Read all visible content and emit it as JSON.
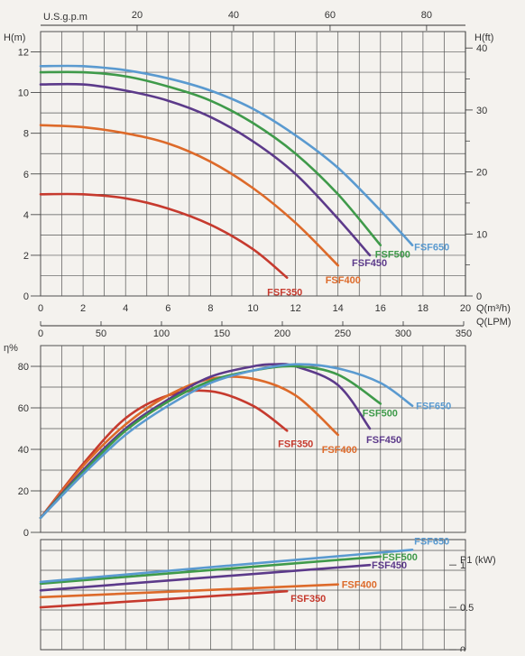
{
  "chart_data": [
    {
      "type": "line",
      "title": "",
      "xlabel": "Q(m³/h)",
      "ylabel": "H(m)",
      "y2label": "H(ft)",
      "top_axis_label": "U.S.g.p.m",
      "bottom_axis2_label": "Q(LPM)",
      "xlim": [
        0,
        20
      ],
      "ylim": [
        0,
        13
      ],
      "x_ticks": [
        "0",
        "2",
        "4",
        "6",
        "8",
        "10",
        "12",
        "14",
        "16",
        "18",
        "20"
      ],
      "y_ticks": [
        "0",
        "2",
        "4",
        "6",
        "8",
        "10",
        "12"
      ],
      "gpm_ticks": [
        "20",
        "40",
        "60",
        "80"
      ],
      "ft_ticks": [
        "0",
        "10",
        "20",
        "30",
        "40"
      ],
      "lpm_ticks": [
        "0",
        "50",
        "100",
        "150",
        "200",
        "250",
        "300",
        "350"
      ],
      "series": [
        {
          "name": "FSF350",
          "color": "#c63a2e",
          "x": [
            0,
            2,
            4,
            6,
            8,
            10,
            11.6
          ],
          "y": [
            5.0,
            5.0,
            4.8,
            4.3,
            3.5,
            2.3,
            0.9
          ]
        },
        {
          "name": "FSF400",
          "color": "#dd6a2a",
          "x": [
            0,
            2,
            4,
            6,
            8,
            10,
            12,
            14
          ],
          "y": [
            8.4,
            8.3,
            8.0,
            7.5,
            6.6,
            5.3,
            3.6,
            1.5
          ]
        },
        {
          "name": "FSF450",
          "color": "#5c3a8a",
          "x": [
            0,
            2,
            4,
            6,
            8,
            10,
            12,
            14,
            15.5
          ],
          "y": [
            10.4,
            10.4,
            10.1,
            9.6,
            8.8,
            7.6,
            6.0,
            3.8,
            2.0
          ]
        },
        {
          "name": "FSF500",
          "color": "#3f9a4a",
          "x": [
            0,
            2,
            4,
            6,
            8,
            10,
            12,
            14,
            16
          ],
          "y": [
            11.0,
            11.0,
            10.8,
            10.3,
            9.6,
            8.5,
            7.0,
            5.0,
            2.5
          ]
        },
        {
          "name": "FSF650",
          "color": "#5a9ad0",
          "x": [
            0,
            2,
            4,
            6,
            8,
            10,
            12,
            14,
            16,
            17.5
          ],
          "y": [
            11.3,
            11.3,
            11.1,
            10.7,
            10.1,
            9.2,
            7.9,
            6.3,
            4.2,
            2.5
          ]
        }
      ]
    },
    {
      "type": "line",
      "title": "",
      "ylabel": "η%",
      "xlim": [
        0,
        20
      ],
      "ylim": [
        0,
        90
      ],
      "y_ticks": [
        "0",
        "20",
        "40",
        "60",
        "80"
      ],
      "series": [
        {
          "name": "FSF350",
          "color": "#c63a2e",
          "x": [
            0,
            2,
            4,
            6,
            8,
            10,
            11.6
          ],
          "y": [
            7,
            33,
            55,
            66,
            68,
            61,
            49
          ]
        },
        {
          "name": "FSF400",
          "color": "#dd6a2a",
          "x": [
            0,
            2,
            4,
            6,
            8,
            10,
            12,
            14
          ],
          "y": [
            7,
            32,
            52,
            66,
            74,
            74,
            66,
            47
          ]
        },
        {
          "name": "FSF450",
          "color": "#5c3a8a",
          "x": [
            0,
            2,
            4,
            6,
            8,
            10,
            11,
            12,
            14,
            15.5
          ],
          "y": [
            7,
            30,
            50,
            64,
            75,
            80,
            81,
            80,
            71,
            50
          ]
        },
        {
          "name": "FSF500",
          "color": "#3f9a4a",
          "x": [
            0,
            2,
            4,
            6,
            8,
            10,
            12,
            14,
            16
          ],
          "y": [
            7,
            29,
            49,
            63,
            73,
            78,
            80,
            76,
            62
          ]
        },
        {
          "name": "FSF650",
          "color": "#5a9ad0",
          "x": [
            0,
            2,
            4,
            6,
            8,
            10,
            12,
            14,
            16,
            17.5
          ],
          "y": [
            7,
            28,
            47,
            61,
            72,
            78,
            81,
            79,
            72,
            61
          ]
        }
      ]
    },
    {
      "type": "line",
      "title": "",
      "ylabel": "P1 (kW)",
      "xlim": [
        0,
        20
      ],
      "ylim": [
        0,
        1.3
      ],
      "y_ticks": [
        "0",
        "0.5",
        "1"
      ],
      "series": [
        {
          "name": "FSF350",
          "color": "#c63a2e",
          "x": [
            0,
            11.6
          ],
          "y": [
            0.5,
            0.69
          ]
        },
        {
          "name": "FSF400",
          "color": "#dd6a2a",
          "x": [
            0,
            14
          ],
          "y": [
            0.62,
            0.77
          ]
        },
        {
          "name": "FSF450",
          "color": "#5c3a8a",
          "x": [
            0,
            15.5
          ],
          "y": [
            0.7,
            1.0
          ]
        },
        {
          "name": "FSF500",
          "color": "#3f9a4a",
          "x": [
            0,
            16
          ],
          "y": [
            0.78,
            1.1
          ]
        },
        {
          "name": "FSF650",
          "color": "#5a9ad0",
          "x": [
            0,
            17.5
          ],
          "y": [
            0.8,
            1.18
          ]
        }
      ]
    }
  ]
}
